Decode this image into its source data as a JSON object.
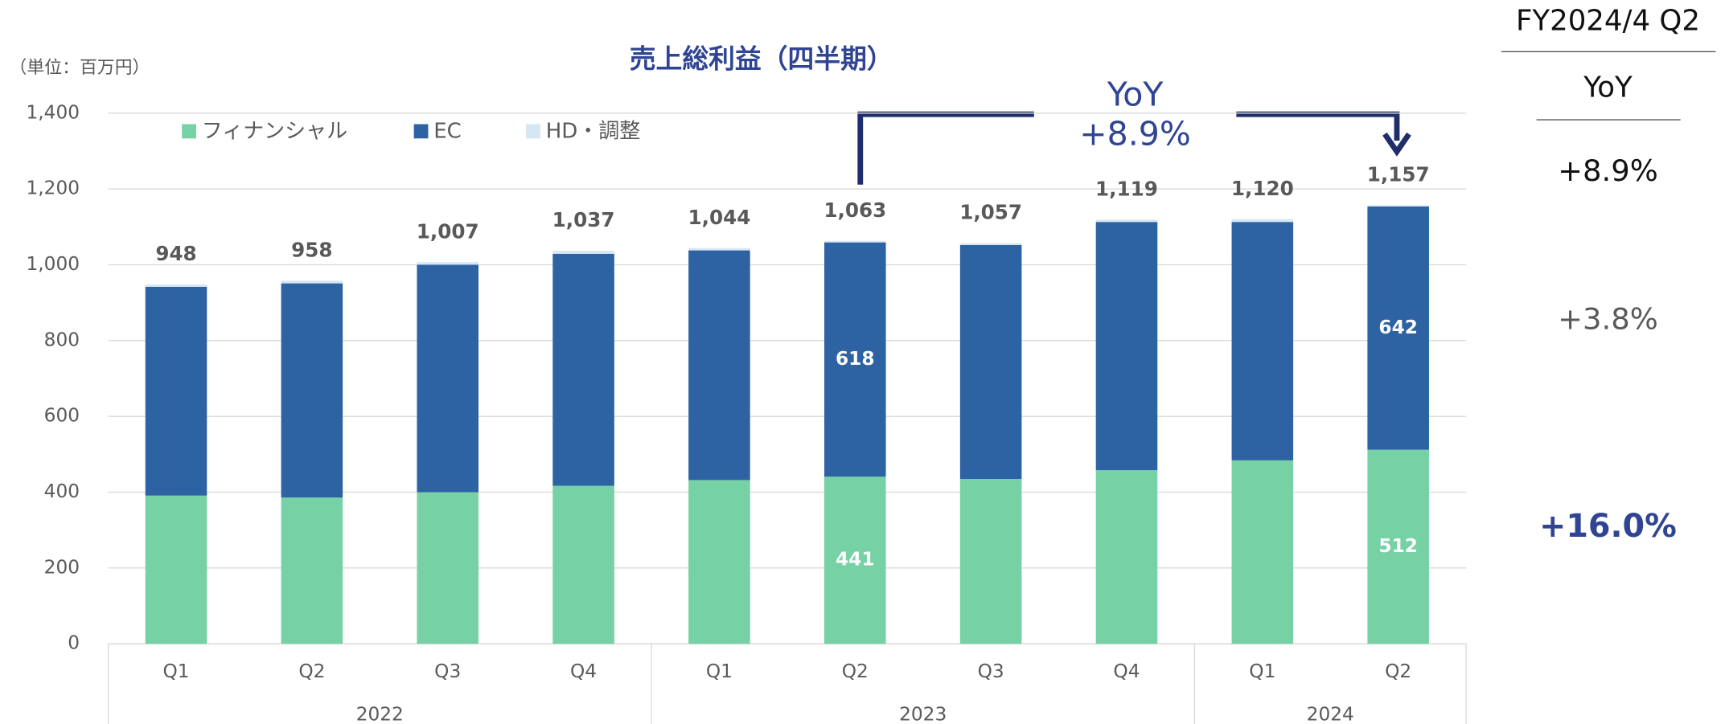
{
  "chart_data": {
    "type": "bar",
    "stacked": true,
    "title": "売上総利益（四半期）",
    "unit_label": "（単位：百万円）",
    "categories": [
      "Q1",
      "Q2",
      "Q3",
      "Q4",
      "Q1",
      "Q2",
      "Q3",
      "Q4",
      "Q1",
      "Q2"
    ],
    "groups": [
      {
        "label": "2022",
        "count": 4
      },
      {
        "label": "2023",
        "count": 4
      },
      {
        "label": "2024",
        "count": 2
      }
    ],
    "series": [
      {
        "name": "フィナンシャル",
        "color": "#76d1a4",
        "values": [
          391,
          386,
          400,
          417,
          432,
          441,
          435,
          458,
          484,
          512
        ],
        "value_labels": [
          null,
          null,
          null,
          null,
          null,
          "441",
          null,
          null,
          null,
          "512"
        ]
      },
      {
        "name": "EC",
        "color": "#2e63a3",
        "values": [
          551,
          565,
          600,
          612,
          606,
          618,
          617,
          655,
          629,
          642
        ],
        "value_labels": [
          null,
          null,
          null,
          null,
          null,
          "618",
          null,
          null,
          null,
          "642"
        ]
      },
      {
        "name": "HD・調整",
        "color": "#d6e6f5",
        "values": [
          6,
          7,
          7,
          8,
          6,
          4,
          5,
          6,
          7,
          3
        ]
      }
    ],
    "totals": [
      948,
      958,
      1007,
      1037,
      1044,
      1063,
      1057,
      1119,
      1120,
      1157
    ],
    "total_labels": [
      "948",
      "958",
      "1,007",
      "1,037",
      "1,044",
      "1,063",
      "1,057",
      "1,119",
      "1,120",
      "1,157"
    ],
    "ylim": [
      0,
      1400
    ],
    "yticks": [
      0,
      {
        "value": 200,
        "label": "200"
      },
      400,
      600,
      800,
      {
        "value": 1000,
        "label": "1,000"
      },
      {
        "value": 1200,
        "label": "1,200"
      },
      {
        "value": 1400,
        "label": "1,400"
      }
    ],
    "grid": true,
    "legend": "top-left",
    "annotation": {
      "title": "YoY",
      "value": "+8.9%"
    },
    "side_panel": {
      "header": "FY2024/4 Q2",
      "subheader": "YoY",
      "rows": [
        "+8.9%",
        "+3.8%",
        "+16.0%"
      ]
    }
  }
}
